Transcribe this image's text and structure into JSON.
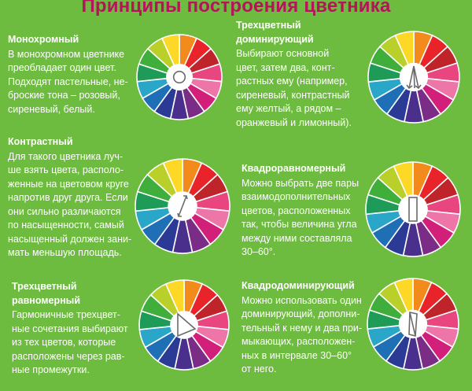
{
  "title": "Принципы построения цветника",
  "colors": {
    "background": "#6dbb3f",
    "title": "#b5145a",
    "text": "#ffffff",
    "wheel_segments": [
      "#f28a1c",
      "#e8242a",
      "#c0242b",
      "#e9457f",
      "#ee75a8",
      "#d21f7a",
      "#7a2c86",
      "#4b2f8c",
      "#2b3a95",
      "#1e6fb5",
      "#2aa6c9",
      "#1e9b57",
      "#3fae3a",
      "#b9cf2a",
      "#fdd826"
    ]
  },
  "sections": [
    {
      "id": "mono",
      "heading": "Монохромный",
      "text": "В монохромном цветнике\nпреобладает один цвет.\nПодходят пастельные, не-\nброские тона – розовый,\nсиреневый, белый.",
      "marker": "circle"
    },
    {
      "id": "tri-dom",
      "heading": "Трехцветный\nдоминирующий",
      "text": "Выбирают основной\nцвет, затем два, конт-\nрастных ему (например,\nсиреневый, контрастный\nему желтый, а рядом –\nоранжевый и лимонный).",
      "marker": "arrows-fan"
    },
    {
      "id": "contrast",
      "heading": "Контрастный",
      "text": "Для такого цветника луч-\nше взять цвета, располо-\nженные на цветовом круге\nнапротив друг друга. Если\nони сильно различаются\nпо насыщенности, самый\nнасыщенный должен зани-\nмать меньшую площадь.",
      "marker": "double-arrow"
    },
    {
      "id": "quad-even",
      "heading": "Квадроравномерный",
      "text": "Можно выбрать две пары\nвзаимодополнительных\nцветов, расположенных\nтак, чтобы величина угла\nмежду ними составляла\n30–60°.",
      "marker": "rectangle"
    },
    {
      "id": "tri-even",
      "heading": "Трехцветный\nравномерный",
      "text": "Гармоничные трехцвет-\nные сочетания выбирают\nиз тех цветов, которые\nрасположены через рав-\nные промежутки.",
      "marker": "triangle"
    },
    {
      "id": "quad-dom",
      "heading": "Квадродоминирующий",
      "text": "Можно использовать один\nдоминирующий, дополни-\nтельный к нему и два при-\nмыкающих, расположен-\nных в интервале 30–60°\nот него.",
      "marker": "kite"
    }
  ]
}
